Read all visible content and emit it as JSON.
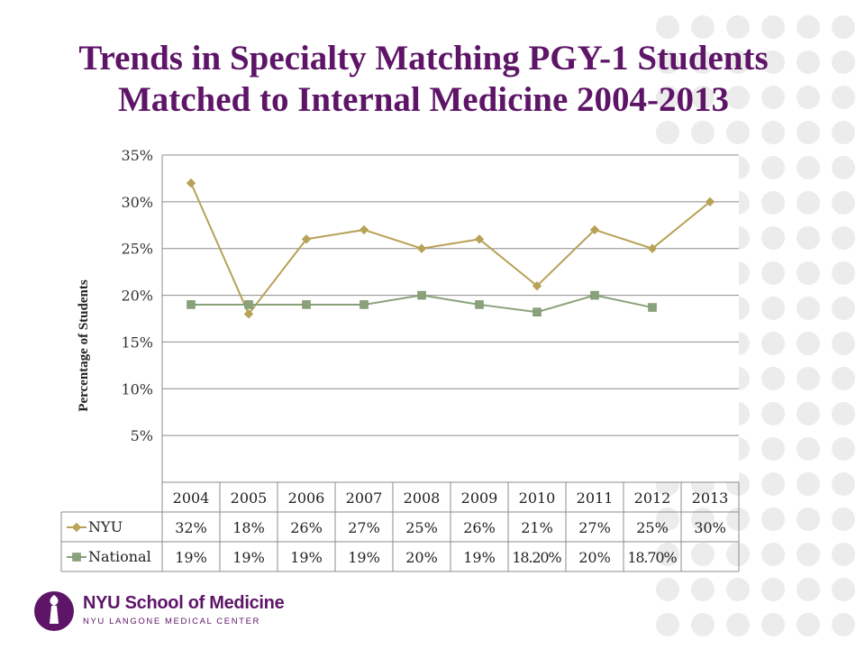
{
  "slide": {
    "title_line1": "Trends in Specialty Matching PGY-1 Students",
    "title_line2": "Matched to Internal Medicine 2004-2013"
  },
  "chart_data": {
    "type": "line",
    "ylabel": "Percentage of Students",
    "ylim": [
      0,
      35
    ],
    "y_ticks": [
      "5%",
      "10%",
      "15%",
      "20%",
      "25%",
      "30%",
      "35%"
    ],
    "y_tick_values": [
      5,
      10,
      15,
      20,
      25,
      30,
      35
    ],
    "categories": [
      "2004",
      "2005",
      "2006",
      "2007",
      "2008",
      "2009",
      "2010",
      "2011",
      "2012",
      "2013"
    ],
    "series": [
      {
        "name": "NYU",
        "color": "#b8a257",
        "marker": "diamond",
        "values": [
          32,
          18,
          26,
          27,
          25,
          26,
          21,
          27,
          25,
          30
        ],
        "labels": [
          "32%",
          "18%",
          "26%",
          "27%",
          "25%",
          "26%",
          "21%",
          "27%",
          "25%",
          "30%"
        ]
      },
      {
        "name": "National",
        "color": "#8aa27a",
        "marker": "square",
        "values": [
          19,
          19,
          19,
          19,
          20,
          19,
          18.2,
          20,
          18.7,
          null
        ],
        "labels": [
          "19%",
          "19%",
          "19%",
          "19%",
          "20%",
          "19%",
          "18.20%",
          "20%",
          "18.70%",
          ""
        ]
      }
    ],
    "grid": true,
    "legend": "data-table"
  },
  "logo": {
    "brand": "NYU School of Medicine",
    "sub": "NYU LANGONE MEDICAL CENTER",
    "accent": "#5e1568"
  }
}
